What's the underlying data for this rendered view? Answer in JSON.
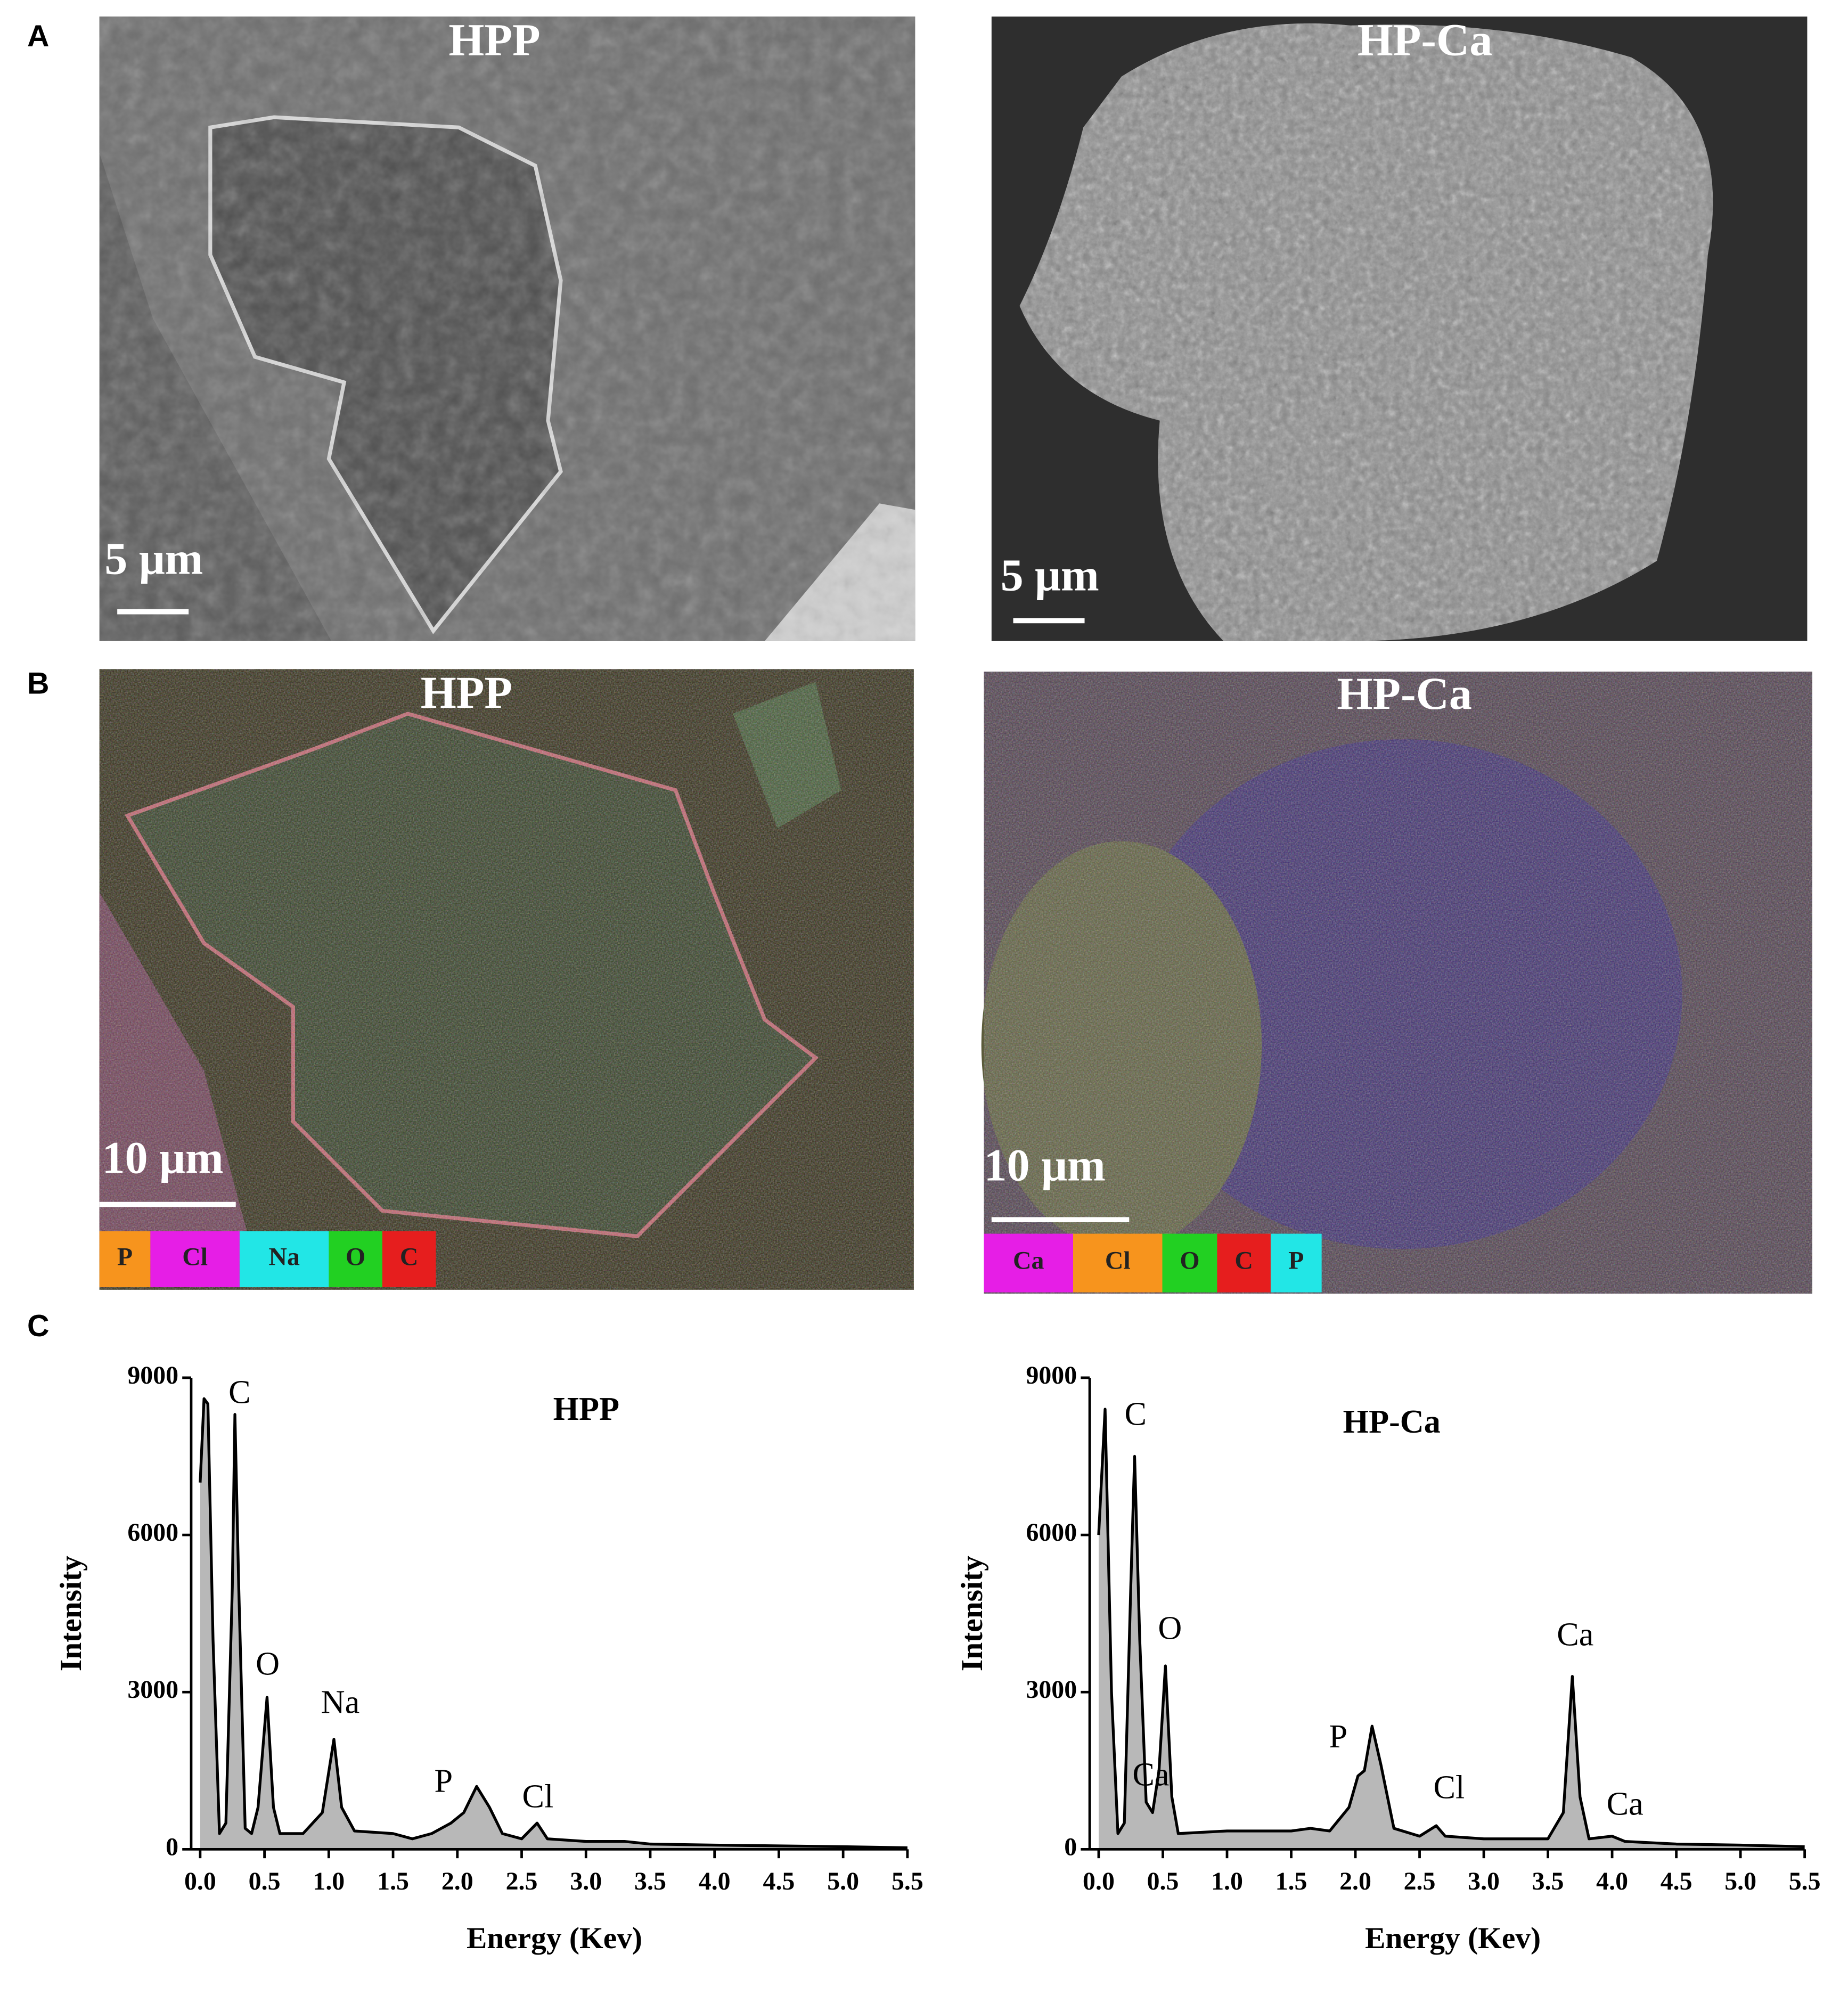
{
  "figure": {
    "panel_labels": [
      "A",
      "B",
      "C"
    ],
    "sem": [
      {
        "title": "HPP",
        "scale_bar": "5 μm"
      },
      {
        "title": "HP-Ca",
        "scale_bar": "5 μm"
      }
    ],
    "eds_maps": [
      {
        "title": "HPP",
        "scale_bar": "10 μm",
        "elements": [
          {
            "label": "P",
            "color": "#f7941d"
          },
          {
            "label": "Cl",
            "color": "#e61ee6"
          },
          {
            "label": "Na",
            "color": "#22e6e6"
          },
          {
            "label": "O",
            "color": "#22d022"
          },
          {
            "label": "C",
            "color": "#e61e1e"
          }
        ]
      },
      {
        "title": "HP-Ca",
        "scale_bar": "10 μm",
        "elements": [
          {
            "label": "Ca",
            "color": "#e61ee6"
          },
          {
            "label": "Cl",
            "color": "#f7941d"
          },
          {
            "label": "O",
            "color": "#22d022"
          },
          {
            "label": "C",
            "color": "#e61e1e"
          },
          {
            "label": "P",
            "color": "#22e6e6"
          }
        ]
      }
    ]
  },
  "chart_data": [
    {
      "type": "line",
      "title": "HPP",
      "x_label": "Energy (Kev)",
      "y_label": "Intensity",
      "fill": true,
      "color": "#000000",
      "fill_color": "#b8b8b8",
      "x": [
        0.0,
        0.03,
        0.06,
        0.1,
        0.15,
        0.2,
        0.25,
        0.27,
        0.3,
        0.35,
        0.4,
        0.45,
        0.52,
        0.57,
        0.62,
        0.8,
        0.95,
        1.04,
        1.1,
        1.2,
        1.5,
        1.65,
        1.8,
        1.95,
        2.05,
        2.15,
        2.25,
        2.35,
        2.5,
        2.62,
        2.7,
        3.0,
        3.3,
        3.5,
        4.0,
        5.0,
        5.5
      ],
      "values": [
        7000,
        8600,
        8500,
        4000,
        300,
        500,
        5000,
        8300,
        5000,
        400,
        300,
        800,
        2900,
        800,
        300,
        300,
        700,
        2100,
        800,
        350,
        300,
        200,
        300,
        500,
        700,
        1200,
        800,
        300,
        200,
        500,
        200,
        150,
        150,
        100,
        80,
        50,
        30
      ],
      "annotations": [
        "C",
        "O",
        "Na",
        "P",
        "Cl"
      ],
      "xlim": [
        -0.07,
        5.5
      ],
      "ylim": [
        0,
        9000
      ],
      "xticks": [
        {
          "value": 0,
          "label": "0.0"
        },
        0.5,
        {
          "value": 1,
          "label": "1.0"
        },
        1.5,
        {
          "value": 2,
          "label": "2.0"
        },
        2.5,
        {
          "value": 3,
          "label": "3.0"
        },
        3.5,
        {
          "value": 4,
          "label": "4.0"
        },
        4.5,
        {
          "value": 5,
          "label": "5.0"
        },
        5.5
      ],
      "yticks": [
        0,
        3000,
        6000,
        9000
      ]
    },
    {
      "type": "line",
      "title": "HP-Ca",
      "x_label": "Energy (Kev)",
      "y_label": "Intensity",
      "fill": true,
      "color": "#000000",
      "fill_color": "#b8b8b8",
      "x": [
        0.0,
        0.05,
        0.1,
        0.15,
        0.2,
        0.25,
        0.28,
        0.32,
        0.37,
        0.42,
        0.47,
        0.52,
        0.57,
        0.62,
        1.0,
        1.5,
        1.65,
        1.8,
        1.95,
        2.02,
        2.07,
        2.13,
        2.2,
        2.3,
        2.5,
        2.63,
        2.7,
        3.0,
        3.5,
        3.62,
        3.69,
        3.75,
        3.82,
        4.0,
        4.1,
        4.5,
        5.0,
        5.5
      ],
      "values": [
        6000,
        8400,
        3000,
        300,
        500,
        5000,
        7500,
        4000,
        900,
        700,
        1500,
        3500,
        1000,
        300,
        350,
        350,
        400,
        350,
        800,
        1400,
        1500,
        2350,
        1600,
        400,
        250,
        450,
        250,
        200,
        200,
        700,
        3300,
        1000,
        200,
        250,
        150,
        100,
        80,
        50
      ],
      "annotations": [
        "C",
        "O",
        "Ca",
        "P",
        "Cl",
        "Ca",
        "Ca"
      ],
      "xlim": [
        -0.07,
        5.5
      ],
      "ylim": [
        0,
        9000
      ],
      "xticks": [
        {
          "value": 0,
          "label": "0.0"
        },
        0.5,
        {
          "value": 1,
          "label": "1.0"
        },
        1.5,
        {
          "value": 2,
          "label": "2.0"
        },
        2.5,
        {
          "value": 3,
          "label": "3.0"
        },
        3.5,
        {
          "value": 4,
          "label": "4.0"
        },
        4.5,
        {
          "value": 5,
          "label": "5.0"
        },
        5.5
      ],
      "yticks": [
        0,
        3000,
        6000,
        9000
      ]
    }
  ]
}
